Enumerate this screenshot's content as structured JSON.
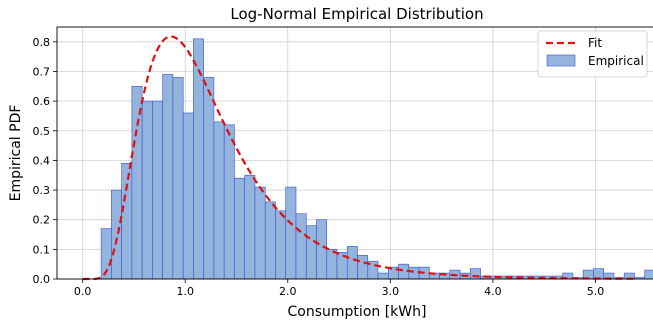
{
  "chart_data": {
    "type": "bar",
    "title": "Log-Normal Empirical Distribution",
    "xlabel": "Consumption [kWh]",
    "ylabel": "Empirical PDF",
    "xlim": [
      -0.25,
      5.6
    ],
    "ylim": [
      0,
      0.85
    ],
    "xticks": [
      0.0,
      1.0,
      2.0,
      3.0,
      4.0,
      5.0
    ],
    "xtick_labels": [
      "0.0",
      "1.0",
      "2.0",
      "3.0",
      "4.0",
      "5.0"
    ],
    "yticks": [
      0.0,
      0.1,
      0.2,
      0.3,
      0.4,
      0.5,
      0.6,
      0.7,
      0.8
    ],
    "ytick_labels": [
      "0.0",
      "0.1",
      "0.2",
      "0.3",
      "0.4",
      "0.5",
      "0.6",
      "0.7",
      "0.8"
    ],
    "grid": true,
    "legend_position": "top-right",
    "legend": [
      {
        "label": "Fit",
        "kind": "line"
      },
      {
        "label": "Empirical",
        "kind": "patch"
      }
    ],
    "histogram": {
      "name": "Empirical",
      "bin_start": 0.18,
      "bin_width": 0.1,
      "values": [
        0.17,
        0.3,
        0.39,
        0.65,
        0.6,
        0.6,
        0.69,
        0.68,
        0.56,
        0.81,
        0.68,
        0.53,
        0.52,
        0.34,
        0.35,
        0.31,
        0.26,
        0.23,
        0.31,
        0.22,
        0.18,
        0.2,
        0.1,
        0.09,
        0.11,
        0.08,
        0.06,
        0.02,
        0.04,
        0.05,
        0.04,
        0.04,
        0.02,
        0.02,
        0.03,
        0.02,
        0.035,
        0.01,
        0.01,
        0.01,
        0.01,
        0.01,
        0.01,
        0.01,
        0.01,
        0.02,
        0.005,
        0.03,
        0.035,
        0.02,
        0.005,
        0.02,
        0.005,
        0.03
      ]
    },
    "fit": {
      "name": "Fit",
      "distribution": "lognormal",
      "mu": 0.1,
      "sigma": 0.5,
      "x_range": [
        0.0,
        5.4
      ],
      "points": 220
    },
    "colors": {
      "bar_fill": "#93b4dc",
      "bar_edge": "#3d4fd6",
      "fit_line": "#e01010"
    }
  }
}
